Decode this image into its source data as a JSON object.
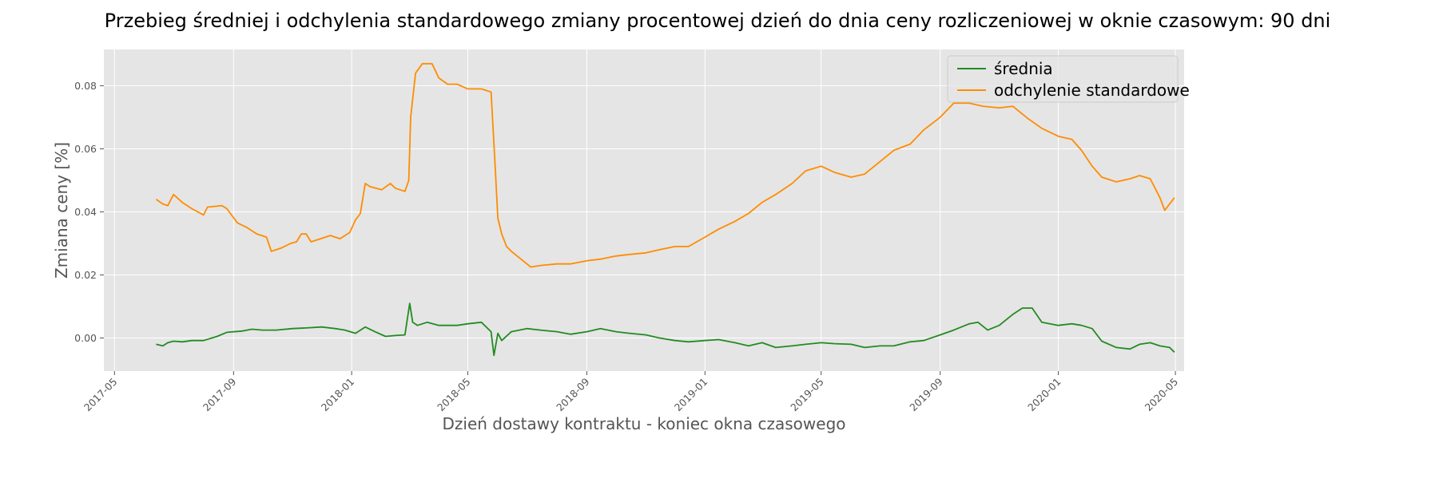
{
  "chart_data": {
    "type": "line",
    "title": "Przebieg średniej i odchylenia standardowego zmiany procentowej dzień do dnia ceny rozliczeniowej w oknie czasowym: 90 dni",
    "xlabel": "Dzień dostawy kontraktu - koniec okna czasowego",
    "ylabel": "Zmiana ceny [%]",
    "x_type": "date",
    "xlim": [
      "2017-04-20",
      "2020-05-10"
    ],
    "ylim": [
      -0.0105,
      0.0915
    ],
    "x_ticks": [
      "2017-05-01",
      "2017-09-01",
      "2018-01-01",
      "2018-05-01",
      "2018-09-01",
      "2019-01-01",
      "2019-05-01",
      "2019-09-01",
      "2020-01-01",
      "2020-05-01"
    ],
    "x_tick_labels": [
      "2017-05",
      "2017-09",
      "2018-01",
      "2018-05",
      "2018-09",
      "2019-01",
      "2019-05",
      "2019-09",
      "2020-01",
      "2020-05"
    ],
    "y_ticks": [
      0.0,
      0.02,
      0.04,
      0.06,
      0.08
    ],
    "y_tick_labels": [
      "0.00",
      "0.02",
      "0.04",
      "0.06",
      "0.08"
    ],
    "grid": true,
    "legend_position": "top-right",
    "series": [
      {
        "name": "średnia",
        "color": "#228b22",
        "x": [
          "2017-06-13",
          "2017-06-20",
          "2017-06-25",
          "2017-07-01",
          "2017-07-10",
          "2017-07-20",
          "2017-08-01",
          "2017-08-15",
          "2017-08-25",
          "2017-09-10",
          "2017-09-20",
          "2017-10-01",
          "2017-10-15",
          "2017-11-01",
          "2017-11-15",
          "2017-12-01",
          "2017-12-15",
          "2017-12-25",
          "2018-01-05",
          "2018-01-15",
          "2018-01-25",
          "2018-02-05",
          "2018-02-15",
          "2018-02-25",
          "2018-03-02",
          "2018-03-05",
          "2018-03-10",
          "2018-03-20",
          "2018-04-01",
          "2018-04-10",
          "2018-04-20",
          "2018-05-01",
          "2018-05-15",
          "2018-05-25",
          "2018-05-28",
          "2018-06-01",
          "2018-06-05",
          "2018-06-15",
          "2018-07-01",
          "2018-07-15",
          "2018-08-01",
          "2018-08-15",
          "2018-09-01",
          "2018-09-15",
          "2018-10-01",
          "2018-10-15",
          "2018-11-01",
          "2018-11-15",
          "2018-12-01",
          "2018-12-15",
          "2019-01-01",
          "2019-01-15",
          "2019-02-01",
          "2019-02-15",
          "2019-03-01",
          "2019-03-15",
          "2019-04-01",
          "2019-04-15",
          "2019-05-01",
          "2019-05-15",
          "2019-06-01",
          "2019-06-15",
          "2019-07-01",
          "2019-07-15",
          "2019-08-01",
          "2019-08-15",
          "2019-09-01",
          "2019-09-15",
          "2019-10-01",
          "2019-10-10",
          "2019-10-20",
          "2019-11-01",
          "2019-11-15",
          "2019-11-25",
          "2019-12-05",
          "2019-12-15",
          "2020-01-01",
          "2020-01-15",
          "2020-01-25",
          "2020-02-05",
          "2020-02-15",
          "2020-03-01",
          "2020-03-15",
          "2020-03-25",
          "2020-04-05",
          "2020-04-15",
          "2020-04-25",
          "2020-04-30"
        ],
        "y": [
          -0.002,
          -0.0025,
          -0.0015,
          -0.001,
          -0.0012,
          -0.0008,
          -0.0008,
          0.0005,
          0.0018,
          0.0022,
          0.0028,
          0.0025,
          0.0025,
          0.003,
          0.0032,
          0.0035,
          0.003,
          0.0025,
          0.0015,
          0.0035,
          0.002,
          0.0005,
          0.0008,
          0.001,
          0.011,
          0.005,
          0.004,
          0.005,
          0.004,
          0.004,
          0.004,
          0.0045,
          0.005,
          0.002,
          -0.0055,
          0.0015,
          -0.0008,
          0.002,
          0.003,
          0.0025,
          0.002,
          0.0012,
          0.002,
          0.003,
          0.002,
          0.0015,
          0.001,
          0.0,
          -0.0008,
          -0.0012,
          -0.0008,
          -0.0005,
          -0.0015,
          -0.0025,
          -0.0015,
          -0.003,
          -0.0025,
          -0.002,
          -0.0015,
          -0.0018,
          -0.002,
          -0.003,
          -0.0025,
          -0.0025,
          -0.0012,
          -0.0008,
          0.001,
          0.0025,
          0.0045,
          0.005,
          0.0025,
          0.004,
          0.0075,
          0.0095,
          0.0095,
          0.005,
          0.004,
          0.0045,
          0.004,
          0.003,
          -0.001,
          -0.003,
          -0.0035,
          -0.002,
          -0.0015,
          -0.0025,
          -0.003,
          -0.0045
        ]
      },
      {
        "name": "odchylenie standardowe",
        "color": "#ff8c00",
        "x": [
          "2017-06-13",
          "2017-06-20",
          "2017-06-25",
          "2017-07-01",
          "2017-07-10",
          "2017-07-20",
          "2017-08-01",
          "2017-08-05",
          "2017-08-20",
          "2017-08-25",
          "2017-09-05",
          "2017-09-15",
          "2017-09-25",
          "2017-10-05",
          "2017-10-10",
          "2017-10-20",
          "2017-10-30",
          "2017-11-05",
          "2017-11-10",
          "2017-11-15",
          "2017-11-20",
          "2017-12-10",
          "2017-12-20",
          "2017-12-30",
          "2018-01-05",
          "2018-01-10",
          "2018-01-15",
          "2018-01-20",
          "2018-02-01",
          "2018-02-10",
          "2018-02-15",
          "2018-02-25",
          "2018-03-01",
          "2018-03-03",
          "2018-03-08",
          "2018-03-15",
          "2018-03-25",
          "2018-04-01",
          "2018-04-10",
          "2018-04-20",
          "2018-05-01",
          "2018-05-15",
          "2018-05-25",
          "2018-05-29",
          "2018-06-01",
          "2018-06-05",
          "2018-06-10",
          "2018-06-15",
          "2018-06-25",
          "2018-07-05",
          "2018-07-15",
          "2018-08-01",
          "2018-08-15",
          "2018-09-01",
          "2018-09-15",
          "2018-10-01",
          "2018-10-15",
          "2018-11-01",
          "2018-11-15",
          "2018-12-01",
          "2018-12-15",
          "2019-01-01",
          "2019-01-15",
          "2019-02-01",
          "2019-02-15",
          "2019-03-01",
          "2019-03-15",
          "2019-04-01",
          "2019-04-15",
          "2019-05-01",
          "2019-05-15",
          "2019-06-01",
          "2019-06-15",
          "2019-07-01",
          "2019-07-15",
          "2019-08-01",
          "2019-08-15",
          "2019-09-01",
          "2019-09-15",
          "2019-10-01",
          "2019-10-15",
          "2019-11-01",
          "2019-11-15",
          "2019-12-01",
          "2019-12-15",
          "2020-01-01",
          "2020-01-15",
          "2020-01-25",
          "2020-02-05",
          "2020-02-15",
          "2020-03-01",
          "2020-03-15",
          "2020-03-25",
          "2020-04-05",
          "2020-04-15",
          "2020-04-20",
          "2020-04-25",
          "2020-04-30"
        ],
        "y": [
          0.044,
          0.0425,
          0.042,
          0.0455,
          0.043,
          0.041,
          0.039,
          0.0415,
          0.042,
          0.041,
          0.0365,
          0.035,
          0.033,
          0.032,
          0.0275,
          0.0285,
          0.03,
          0.0305,
          0.033,
          0.033,
          0.0305,
          0.0325,
          0.0315,
          0.0335,
          0.0375,
          0.0395,
          0.049,
          0.048,
          0.047,
          0.049,
          0.0475,
          0.0465,
          0.05,
          0.07,
          0.084,
          0.087,
          0.087,
          0.0825,
          0.0805,
          0.0805,
          0.079,
          0.079,
          0.078,
          0.056,
          0.038,
          0.033,
          0.029,
          0.0275,
          0.025,
          0.0225,
          0.023,
          0.0235,
          0.0235,
          0.0245,
          0.025,
          0.026,
          0.0265,
          0.027,
          0.028,
          0.029,
          0.029,
          0.032,
          0.0345,
          0.037,
          0.0395,
          0.043,
          0.0455,
          0.049,
          0.053,
          0.0545,
          0.0525,
          0.051,
          0.052,
          0.056,
          0.0595,
          0.0615,
          0.066,
          0.07,
          0.0745,
          0.0745,
          0.0735,
          0.073,
          0.0735,
          0.0695,
          0.0665,
          0.064,
          0.063,
          0.0595,
          0.0545,
          0.051,
          0.0495,
          0.0505,
          0.0515,
          0.0505,
          0.0445,
          0.0405,
          0.0425,
          0.0445
        ]
      }
    ]
  }
}
